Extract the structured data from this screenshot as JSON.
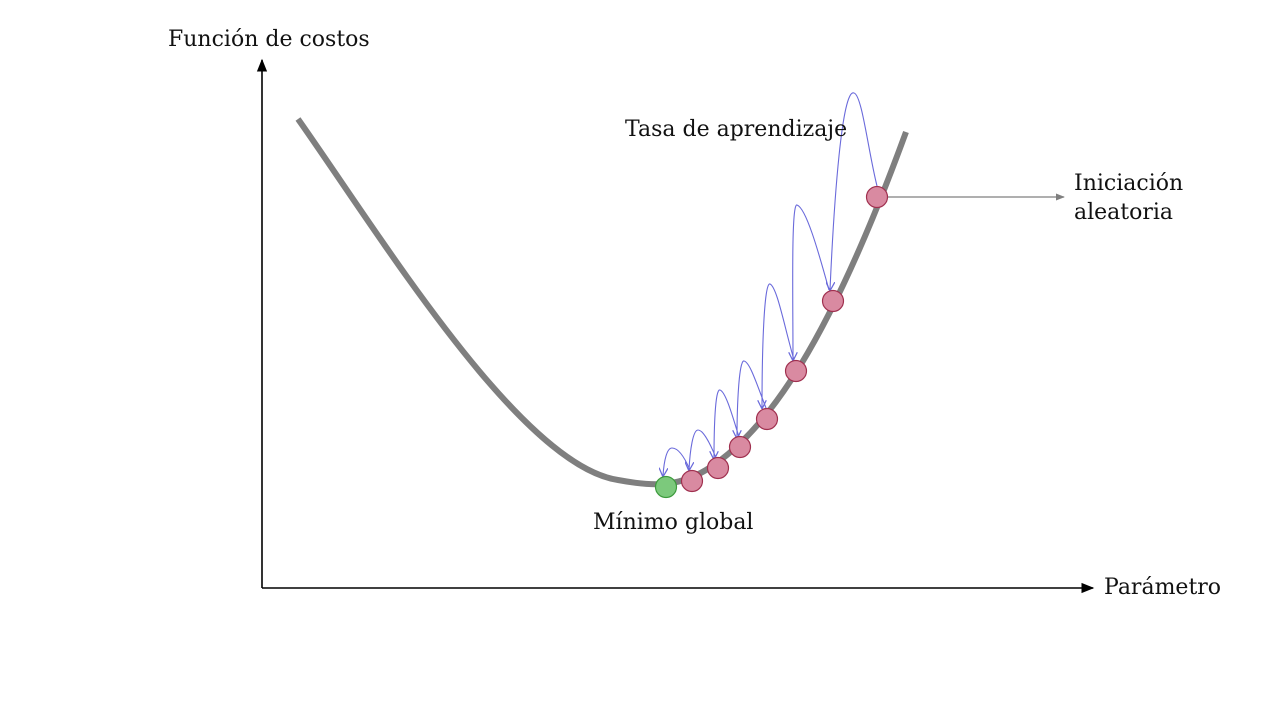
{
  "labels": {
    "y_axis": "Función de costos",
    "x_axis": "Parámetro",
    "learning_rate": "Tasa de aprendizaje",
    "random_init_line1": "Iniciación",
    "random_init_line2": "aleatoria",
    "global_min": "Mínimo global"
  },
  "colors": {
    "background": "#ffffff",
    "axis": "#000000",
    "curve": "#7f7f7f",
    "step_point_fill": "#d98aa1",
    "step_point_stroke": "#a0304f",
    "minimum_fill": "#7cc97c",
    "minimum_stroke": "#3c9a3c",
    "jump_arrow": "#6a6adb",
    "init_arrow": "#7f7f7f"
  },
  "icons": {
    "axis_arrow": "arrowhead",
    "step_point": "circle",
    "minimum_point": "circle"
  }
}
